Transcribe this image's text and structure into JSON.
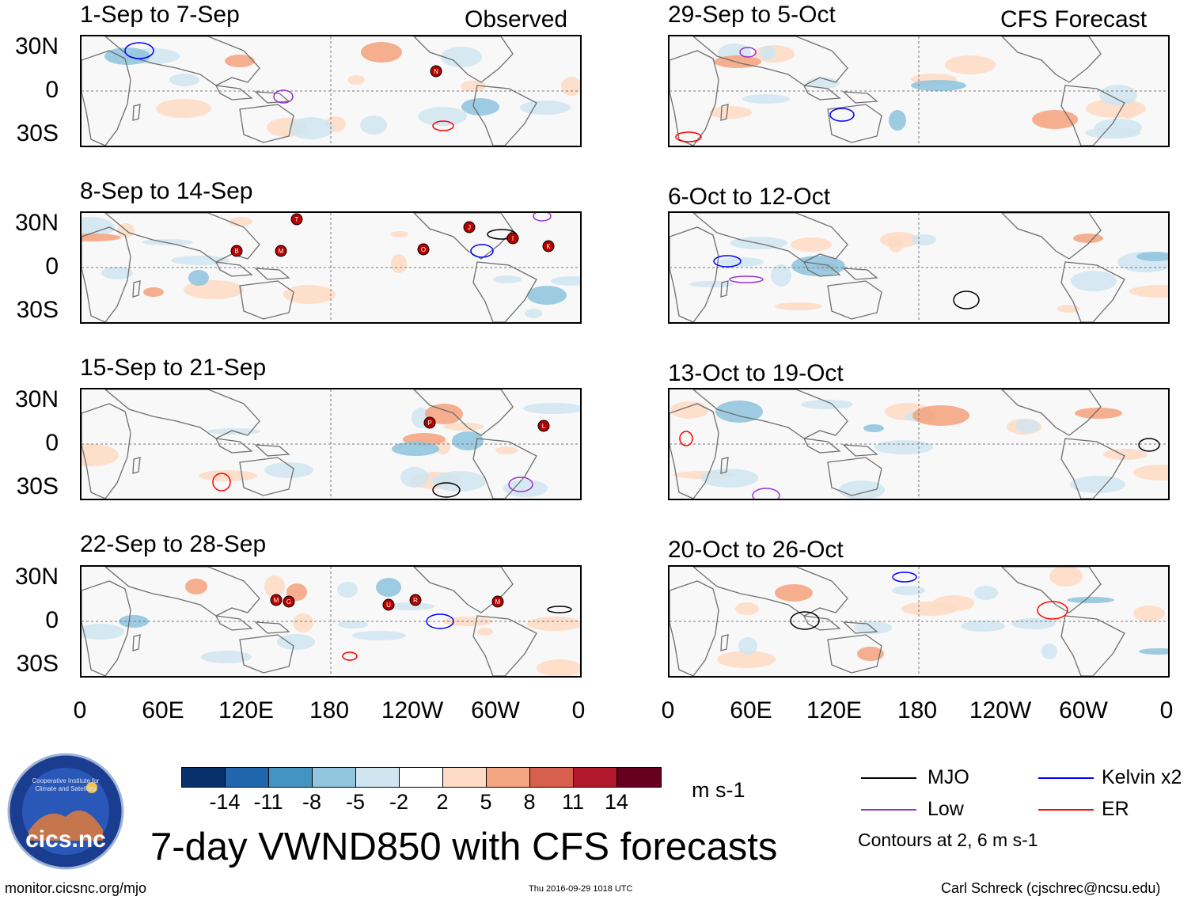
{
  "headings": {
    "observed": "Observed",
    "forecast": "CFS Forecast"
  },
  "lat_labels": [
    "30N",
    "0",
    "30S"
  ],
  "lon_labels": [
    "0",
    "60E",
    "120E",
    "180",
    "120W",
    "60W",
    "0"
  ],
  "panels_left": [
    {
      "title": "1-Sep to 7-Sep"
    },
    {
      "title": "8-Sep to 14-Sep"
    },
    {
      "title": "15-Sep to 21-Sep"
    },
    {
      "title": "22-Sep to 28-Sep"
    }
  ],
  "panels_right": [
    {
      "title": "29-Sep to 5-Oct"
    },
    {
      "title": "6-Oct to 12-Oct"
    },
    {
      "title": "13-Oct to 19-Oct"
    },
    {
      "title": "20-Oct to 26-Oct"
    }
  ],
  "storm_markers": {
    "p1": [
      "N"
    ],
    "p2": [
      "T",
      "J",
      "B",
      "M",
      "O",
      "I",
      "K"
    ],
    "p3": [
      "P",
      "L"
    ],
    "p4": [
      "M",
      "G",
      "U",
      "R",
      "M"
    ]
  },
  "colorbar": {
    "labels": [
      "-14",
      "-11",
      "-8",
      "-5",
      "-2",
      "2",
      "5",
      "8",
      "11",
      "14"
    ],
    "colors": [
      "#08306b",
      "#2166ac",
      "#4393c3",
      "#92c5de",
      "#d1e5f0",
      "#ffffff",
      "#fddbc7",
      "#f4a582",
      "#d6604d",
      "#b2182b",
      "#67001f"
    ],
    "units": "m s-1"
  },
  "legend": {
    "items": [
      {
        "label": "MJO",
        "color": "#000000"
      },
      {
        "label": "Kelvin x2",
        "color": "#0000ff"
      },
      {
        "label": "Low",
        "color": "#9932cc"
      },
      {
        "label": "ER",
        "color": "#ff0000"
      }
    ],
    "note": "Contours at 2, 6 m s-1"
  },
  "logo": {
    "text": "cics.nc",
    "ring_text": "Cooperative Institute for Climate and Satellites"
  },
  "main_title": "7-day VWND850 with CFS forecasts",
  "footer": {
    "url": "monitor.cicsnc.org/mjo",
    "timestamp": "Thu 2016-09-29 1018 UTC",
    "author": "Carl Schreck (cjschrec@ncsu.edu)"
  }
}
